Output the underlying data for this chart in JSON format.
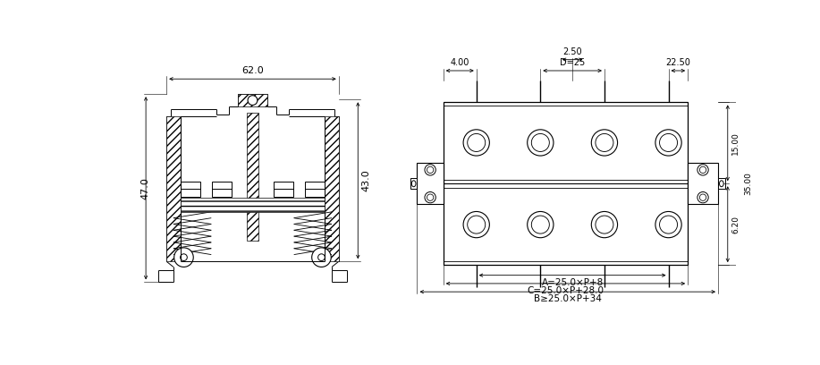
{
  "bg_color": "#ffffff",
  "line_color": "#000000",
  "fig_width": 9.17,
  "fig_height": 4.08,
  "left_panel": {
    "dim_62": "62.0",
    "dim_47": "47.0",
    "dim_43": "43.0"
  },
  "right_panel": {
    "dim_2_50": "2.50",
    "dim_4_00": "4.00",
    "dim_D25": "D=25",
    "dim_22_50": "22.50",
    "dim_15_00": "15.00",
    "dim_35_00": "35.00",
    "dim_6_20": "6.20",
    "dim_A": "A=25.0×P+8",
    "dim_C": "C=25.0×P+28.0",
    "dim_B": "B≥25.0×P+34"
  }
}
